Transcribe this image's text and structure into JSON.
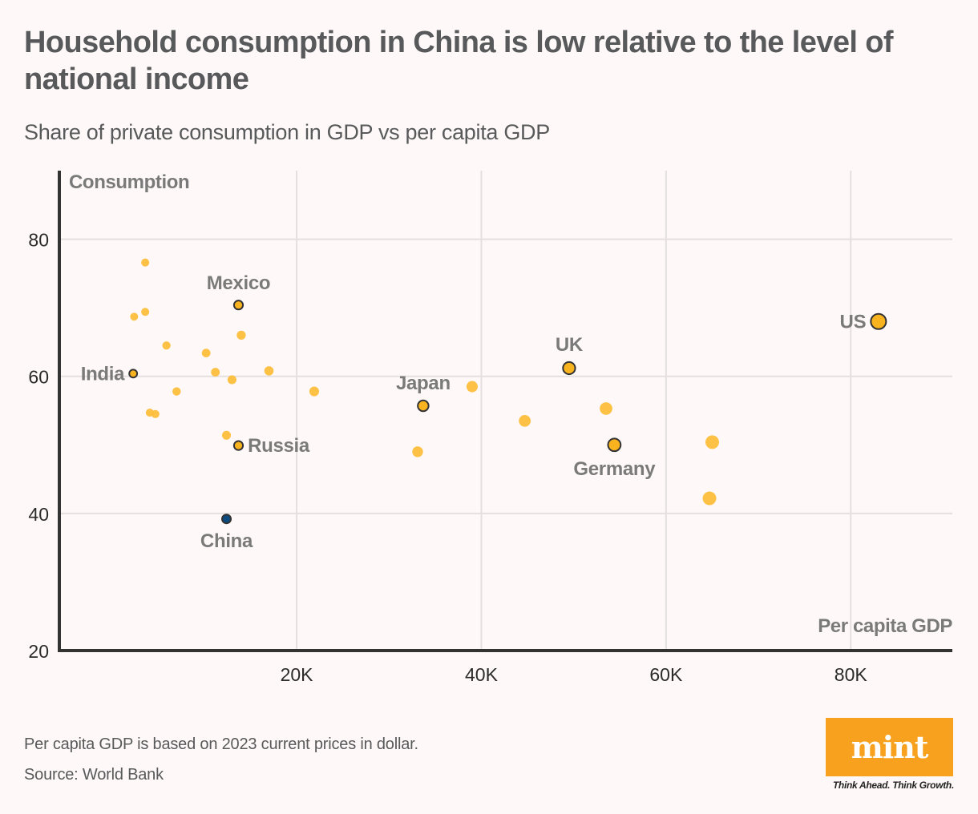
{
  "header": {
    "title": "Household consumption in China is low relative to the level of national income",
    "subtitle": "Share of private consumption in GDP vs per capita GDP"
  },
  "footer": {
    "note": "Per capita GDP is based on 2023 current prices in dollar.",
    "source": "Source: World Bank"
  },
  "brand": {
    "logo_text": "mint",
    "tagline": "Think Ahead. Think Growth.",
    "color": "#f7a11e"
  },
  "colors": {
    "point": "#fdbe3c",
    "highlight": "#f9b31f",
    "china": "#0b4a7f",
    "stroke": "#333333",
    "grid": "#e4e0e0",
    "axis": "#333333"
  },
  "chart_data": {
    "type": "scatter",
    "title": "Household consumption in China is low relative to the level of national income",
    "subtitle": "Share of private consumption in GDP vs per capita GDP",
    "xlabel": "Per capita GDP",
    "ylabel": "Consumption",
    "x_unit": "thousand USD (2023 current prices)",
    "y_unit": "% of GDP",
    "xlim": [
      -5.7,
      91
    ],
    "ylim": [
      20,
      90
    ],
    "xticks": [
      20,
      40,
      60,
      80
    ],
    "xtick_labels": [
      "20K",
      "40K",
      "60K",
      "80K"
    ],
    "yticks": [
      20,
      40,
      80
    ],
    "ytick_labels": [
      "20",
      "40",
      "80"
    ],
    "grid": true,
    "labeled_points": [
      {
        "name": "Mexico",
        "x": 13.7,
        "y": 70.4,
        "label_pos": "top"
      },
      {
        "name": "India",
        "x": 2.3,
        "y": 60.4,
        "label_pos": "left"
      },
      {
        "name": "Russia",
        "x": 13.7,
        "y": 49.9,
        "label_pos": "right"
      },
      {
        "name": "China",
        "x": 12.4,
        "y": 39.2,
        "label_pos": "bottom",
        "highlight": "china"
      },
      {
        "name": "Japan",
        "x": 33.7,
        "y": 55.7,
        "label_pos": "top"
      },
      {
        "name": "UK",
        "x": 49.5,
        "y": 61.2,
        "label_pos": "top"
      },
      {
        "name": "Germany",
        "x": 54.4,
        "y": 50.0,
        "label_pos": "bottom"
      },
      {
        "name": "US",
        "x": 83.0,
        "y": 68.0,
        "label_pos": "left"
      }
    ],
    "other_points": [
      {
        "x": 3.6,
        "y": 76.6
      },
      {
        "x": 3.6,
        "y": 69.4
      },
      {
        "x": 2.4,
        "y": 68.7
      },
      {
        "x": 5.9,
        "y": 64.5
      },
      {
        "x": 14.0,
        "y": 66.0
      },
      {
        "x": 10.2,
        "y": 63.4
      },
      {
        "x": 11.2,
        "y": 60.6
      },
      {
        "x": 13.0,
        "y": 59.5
      },
      {
        "x": 17.0,
        "y": 60.8
      },
      {
        "x": 7.0,
        "y": 57.8
      },
      {
        "x": 21.9,
        "y": 57.8
      },
      {
        "x": 4.1,
        "y": 54.7
      },
      {
        "x": 4.7,
        "y": 54.5
      },
      {
        "x": 12.4,
        "y": 51.4
      },
      {
        "x": 33.1,
        "y": 49.0
      },
      {
        "x": 39.0,
        "y": 58.5
      },
      {
        "x": 44.7,
        "y": 53.5
      },
      {
        "x": 53.5,
        "y": 55.3
      },
      {
        "x": 65.0,
        "y": 50.4
      },
      {
        "x": 64.7,
        "y": 42.2
      }
    ]
  }
}
